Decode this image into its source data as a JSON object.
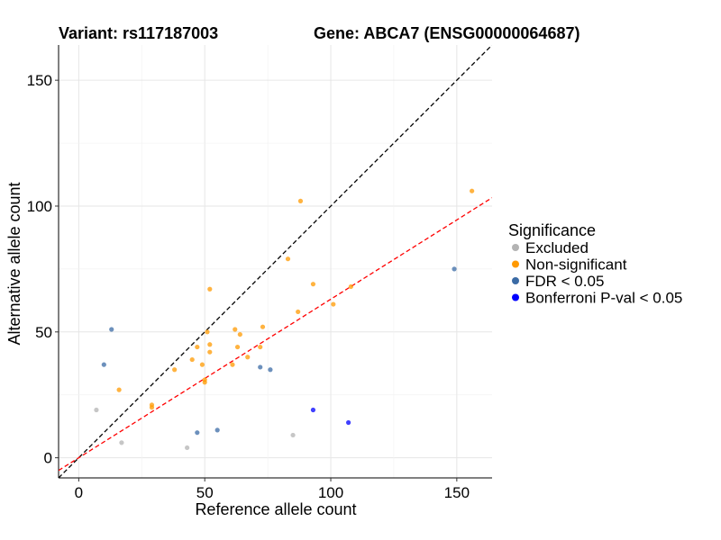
{
  "chart_data": {
    "type": "scatter",
    "title_left": "Variant: rs117187003",
    "title_right": "Gene: ABCA7 (ENSG00000064687)",
    "xlabel": "Reference allele count",
    "ylabel": "Alternative allele count",
    "xlim": [
      -8,
      164
    ],
    "ylim": [
      -8,
      164
    ],
    "x_ticks": [
      0,
      50,
      100,
      150
    ],
    "y_ticks": [
      0,
      50,
      100,
      150
    ],
    "grid": true,
    "reference_lines": [
      {
        "style": "dashed",
        "color": "#000000",
        "slope": 1,
        "intercept": 0
      },
      {
        "style": "dashed",
        "color": "#ff0000",
        "slope": 0.63,
        "intercept": 0
      }
    ],
    "legend": {
      "title": "Significance",
      "placement": "right",
      "items": [
        {
          "key": "excluded",
          "label": "Excluded",
          "color": "#b3b3b3"
        },
        {
          "key": "nonsig",
          "label": "Non-significant",
          "color": "#ff9900"
        },
        {
          "key": "fdr",
          "label": "FDR < 0.05",
          "color": "#3b6ba5"
        },
        {
          "key": "bonf",
          "label": "Bonferroni P-val < 0.05",
          "color": "#0000ff"
        }
      ]
    },
    "series": [
      {
        "key": "excluded",
        "points": [
          [
            7,
            19
          ],
          [
            17,
            6
          ],
          [
            43,
            4
          ],
          [
            85,
            9
          ]
        ]
      },
      {
        "key": "nonsig",
        "points": [
          [
            16,
            27
          ],
          [
            29,
            21
          ],
          [
            29,
            20
          ],
          [
            38,
            35
          ],
          [
            45,
            39
          ],
          [
            47,
            44
          ],
          [
            49,
            37
          ],
          [
            50,
            31
          ],
          [
            50,
            30
          ],
          [
            51,
            50
          ],
          [
            52,
            45
          ],
          [
            52,
            42
          ],
          [
            52,
            67
          ],
          [
            61,
            37
          ],
          [
            62,
            51
          ],
          [
            63,
            44
          ],
          [
            64,
            49
          ],
          [
            67,
            40
          ],
          [
            72,
            44
          ],
          [
            73,
            52
          ],
          [
            83,
            79
          ],
          [
            87,
            58
          ],
          [
            88,
            102
          ],
          [
            93,
            69
          ],
          [
            101,
            61
          ],
          [
            108,
            68
          ],
          [
            156,
            106
          ]
        ]
      },
      {
        "key": "fdr",
        "points": [
          [
            10,
            37
          ],
          [
            13,
            51
          ],
          [
            47,
            10
          ],
          [
            55,
            11
          ],
          [
            72,
            36
          ],
          [
            76,
            35
          ],
          [
            149,
            75
          ]
        ]
      },
      {
        "key": "bonf",
        "points": [
          [
            93,
            19
          ],
          [
            107,
            14
          ]
        ]
      }
    ]
  }
}
